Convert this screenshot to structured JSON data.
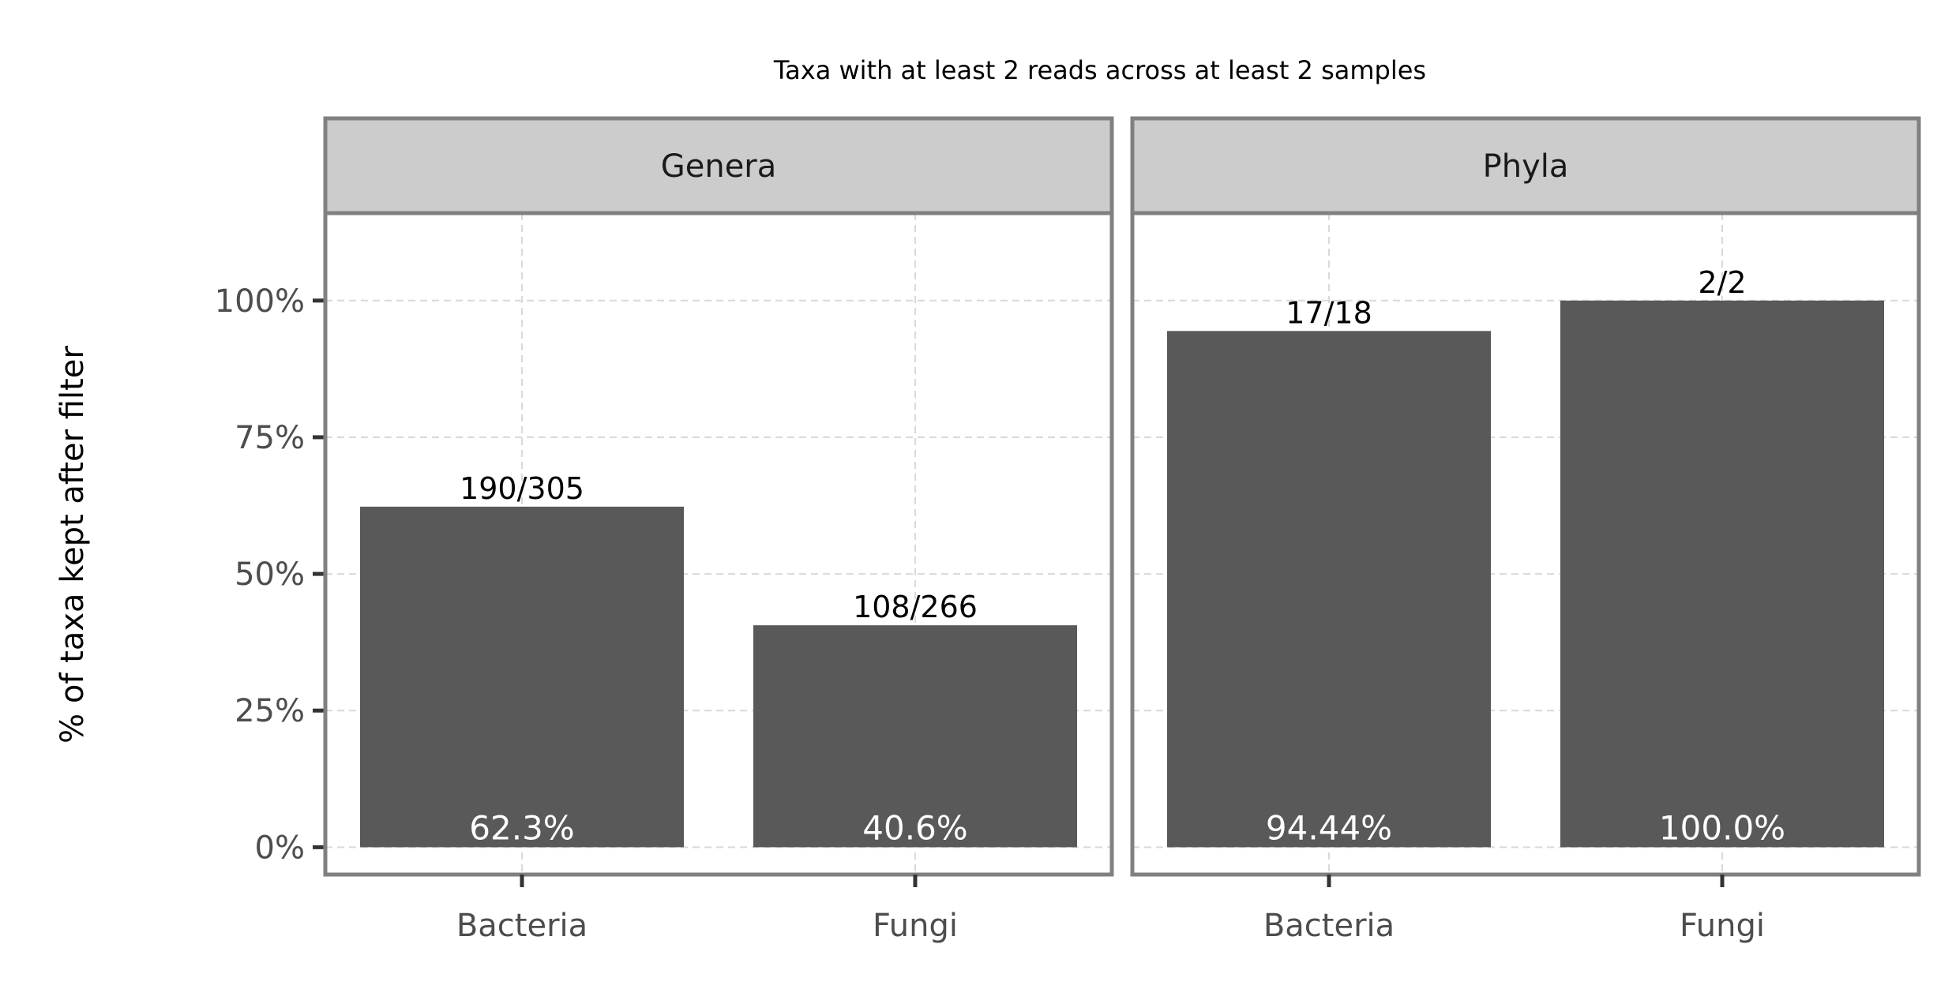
{
  "chart_data": {
    "type": "bar",
    "title": "Taxa with at least 2 reads across at least 2 samples",
    "ylabel": "% of taxa kept after filter",
    "xlabel": "",
    "ylim": [
      -5,
      116
    ],
    "y_ticks": [
      0,
      25,
      50,
      75,
      100
    ],
    "y_tick_labels": [
      "0%",
      "25%",
      "50%",
      "75%",
      "100%"
    ],
    "grid": true,
    "bar_color": "#595959",
    "panels": [
      {
        "name": "Genera",
        "categories": [
          "Bacteria",
          "Fungi"
        ],
        "values": [
          62.3,
          40.6
        ],
        "value_labels": [
          "62.3%",
          "40.6%"
        ],
        "count_labels": [
          "190/305",
          "108/266"
        ]
      },
      {
        "name": "Phyla",
        "categories": [
          "Bacteria",
          "Fungi"
        ],
        "values": [
          94.44,
          100.0
        ],
        "value_labels": [
          "94.44%",
          "100.0%"
        ],
        "count_labels": [
          "17/18",
          "2/2"
        ]
      }
    ]
  }
}
